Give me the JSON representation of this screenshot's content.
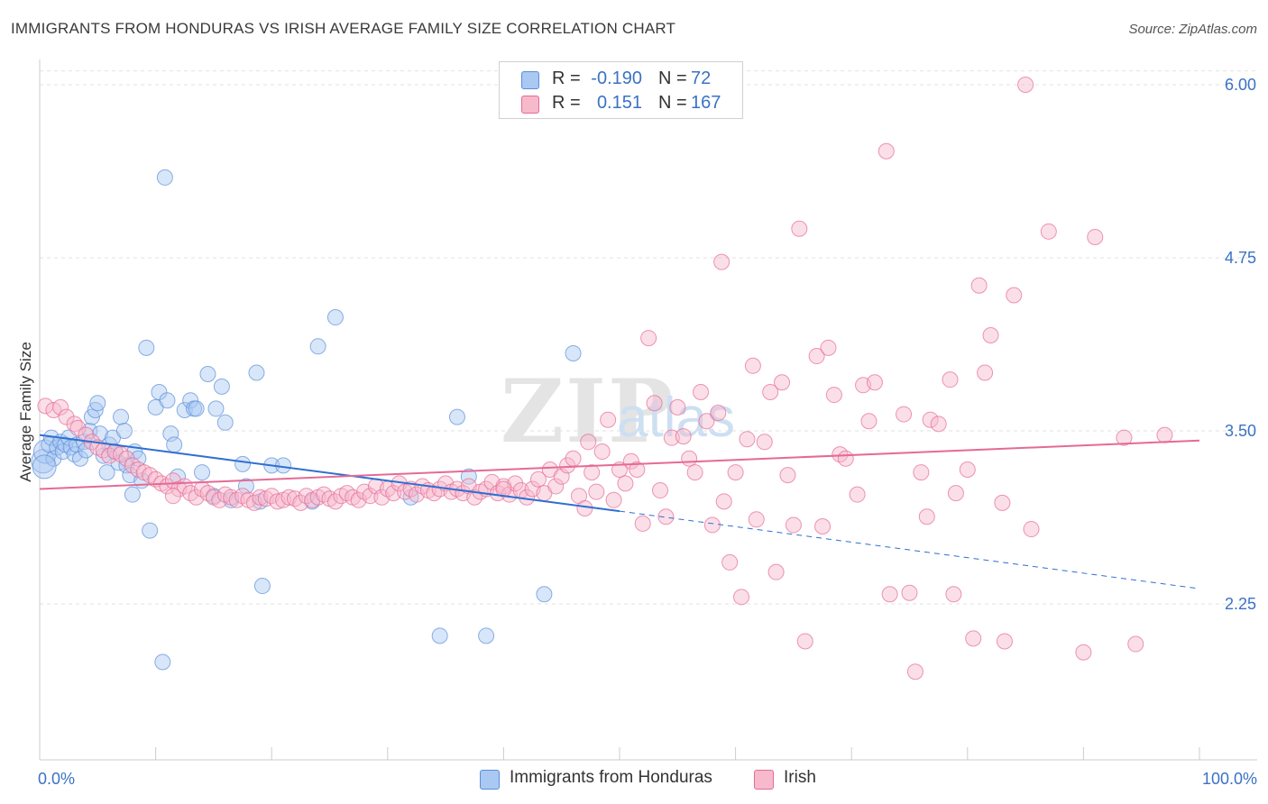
{
  "header": {
    "title": "IMMIGRANTS FROM HONDURAS VS IRISH AVERAGE FAMILY SIZE CORRELATION CHART",
    "source": "Source: ZipAtlas.com"
  },
  "watermark": {
    "zip": "ZIP",
    "atlas": "atlas"
  },
  "legend": {
    "rows": [
      {
        "r_label": "R =",
        "r_value": "-0.190",
        "n_label": "N =",
        "n_value": "72",
        "color": "#a9c8f2"
      },
      {
        "r_label": "R =",
        "r_value": "0.151",
        "n_label": "N =",
        "n_value": "167",
        "color": "#f7b9cc"
      }
    ]
  },
  "bottom_legend": {
    "items": [
      {
        "label": "Immigrants from Honduras",
        "color": "#a9c8f2"
      },
      {
        "label": "Irish",
        "color": "#f7b9cc"
      }
    ]
  },
  "chart_data": {
    "type": "scatter",
    "title": "IMMIGRANTS FROM HONDURAS VS IRISH AVERAGE FAMILY SIZE CORRELATION CHART",
    "xlabel": "",
    "ylabel": "Average Family Size",
    "xlim": [
      0,
      100
    ],
    "ylim": [
      1.2,
      6.2
    ],
    "x_tick_labels": [
      "0.0%",
      "100.0%"
    ],
    "y_ticks": [
      2.25,
      3.5,
      4.75,
      6.0
    ],
    "y_tick_labels": [
      "2.25",
      "3.50",
      "4.75",
      "6.00"
    ],
    "grid": true,
    "series": [
      {
        "name": "Immigrants from Honduras",
        "color": "#5b8fd8",
        "fill": "#a9c8f2",
        "trend": {
          "x0": 0,
          "y0": 3.47,
          "x1": 50,
          "y1": 2.92,
          "dash_to_x": 100,
          "dash_to_y": 2.36
        },
        "points": [
          [
            0.3,
            3.28
          ],
          [
            0.5,
            3.35
          ],
          [
            0.8,
            3.4
          ],
          [
            1.0,
            3.45
          ],
          [
            1.2,
            3.3
          ],
          [
            1.5,
            3.38
          ],
          [
            1.8,
            3.42
          ],
          [
            2.0,
            3.35
          ],
          [
            2.2,
            3.4
          ],
          [
            2.5,
            3.45
          ],
          [
            2.7,
            3.38
          ],
          [
            3.0,
            3.33
          ],
          [
            3.2,
            3.4
          ],
          [
            3.5,
            3.3
          ],
          [
            3.8,
            3.42
          ],
          [
            4.0,
            3.36
          ],
          [
            4.3,
            3.5
          ],
          [
            4.5,
            3.6
          ],
          [
            4.8,
            3.65
          ],
          [
            5.0,
            3.7
          ],
          [
            5.2,
            3.48
          ],
          [
            5.5,
            3.32
          ],
          [
            5.8,
            3.2
          ],
          [
            6.0,
            3.4
          ],
          [
            6.3,
            3.45
          ],
          [
            6.5,
            3.35
          ],
          [
            6.8,
            3.27
          ],
          [
            7.0,
            3.6
          ],
          [
            7.3,
            3.5
          ],
          [
            7.5,
            3.25
          ],
          [
            7.8,
            3.18
          ],
          [
            8.0,
            3.04
          ],
          [
            8.2,
            3.35
          ],
          [
            8.5,
            3.3
          ],
          [
            8.8,
            3.14
          ],
          [
            9.2,
            4.1
          ],
          [
            9.5,
            2.78
          ],
          [
            10.0,
            3.67
          ],
          [
            10.3,
            3.78
          ],
          [
            10.6,
            1.83
          ],
          [
            11.0,
            3.72
          ],
          [
            11.3,
            3.48
          ],
          [
            11.6,
            3.4
          ],
          [
            11.9,
            3.17
          ],
          [
            12.5,
            3.65
          ],
          [
            13.0,
            3.72
          ],
          [
            13.3,
            3.66
          ],
          [
            10.8,
            5.33
          ],
          [
            13.5,
            3.66
          ],
          [
            14.0,
            3.2
          ],
          [
            14.5,
            3.91
          ],
          [
            15.0,
            3.03
          ],
          [
            15.2,
            3.66
          ],
          [
            15.7,
            3.82
          ],
          [
            16.0,
            3.56
          ],
          [
            16.5,
            3.0
          ],
          [
            17.5,
            3.26
          ],
          [
            17.8,
            3.1
          ],
          [
            18.7,
            3.92
          ],
          [
            19.0,
            2.99
          ],
          [
            19.2,
            2.38
          ],
          [
            20.0,
            3.25
          ],
          [
            21.0,
            3.25
          ],
          [
            23.5,
            2.99
          ],
          [
            24.0,
            4.11
          ],
          [
            25.5,
            4.32
          ],
          [
            32.0,
            3.02
          ],
          [
            34.5,
            2.02
          ],
          [
            36.0,
            3.6
          ],
          [
            37.0,
            3.17
          ],
          [
            38.5,
            2.02
          ],
          [
            43.5,
            2.32
          ],
          [
            46.0,
            4.06
          ],
          [
            0.4,
            3.24
          ]
        ]
      },
      {
        "name": "Irish",
        "color": "#e56a96",
        "fill": "#f7b9cc",
        "trend": {
          "x0": 0,
          "y0": 3.08,
          "x1": 100,
          "y1": 3.43
        },
        "points": [
          [
            0.5,
            3.68
          ],
          [
            1.2,
            3.65
          ],
          [
            1.8,
            3.67
          ],
          [
            2.3,
            3.6
          ],
          [
            3.0,
            3.55
          ],
          [
            3.3,
            3.52
          ],
          [
            4.0,
            3.47
          ],
          [
            4.5,
            3.42
          ],
          [
            5.0,
            3.38
          ],
          [
            5.5,
            3.36
          ],
          [
            6.0,
            3.32
          ],
          [
            6.5,
            3.35
          ],
          [
            7.0,
            3.33
          ],
          [
            7.5,
            3.3
          ],
          [
            8.0,
            3.25
          ],
          [
            8.5,
            3.22
          ],
          [
            9.0,
            3.2
          ],
          [
            9.5,
            3.18
          ],
          [
            10.0,
            3.15
          ],
          [
            10.5,
            3.12
          ],
          [
            11.0,
            3.1
          ],
          [
            11.5,
            3.14
          ],
          [
            12.0,
            3.08
          ],
          [
            12.5,
            3.1
          ],
          [
            13.0,
            3.05
          ],
          [
            13.5,
            3.02
          ],
          [
            14.0,
            3.08
          ],
          [
            14.5,
            3.05
          ],
          [
            15.0,
            3.02
          ],
          [
            15.5,
            3.0
          ],
          [
            16.0,
            3.04
          ],
          [
            16.5,
            3.02
          ],
          [
            17.0,
            3.0
          ],
          [
            17.5,
            3.03
          ],
          [
            18.0,
            3.0
          ],
          [
            18.5,
            2.98
          ],
          [
            19.0,
            3.02
          ],
          [
            19.5,
            3.01
          ],
          [
            20.0,
            3.03
          ],
          [
            20.5,
            2.99
          ],
          [
            21.0,
            3.0
          ],
          [
            21.5,
            3.02
          ],
          [
            22.0,
            3.01
          ],
          [
            22.5,
            2.98
          ],
          [
            23.0,
            3.03
          ],
          [
            23.5,
            3.0
          ],
          [
            24.0,
            3.02
          ],
          [
            24.5,
            3.04
          ],
          [
            25.0,
            3.01
          ],
          [
            25.5,
            2.99
          ],
          [
            26.0,
            3.03
          ],
          [
            26.5,
            3.05
          ],
          [
            27.0,
            3.02
          ],
          [
            27.5,
            3.0
          ],
          [
            28.0,
            3.06
          ],
          [
            28.5,
            3.03
          ],
          [
            29.0,
            3.1
          ],
          [
            29.5,
            3.02
          ],
          [
            30.0,
            3.08
          ],
          [
            30.5,
            3.05
          ],
          [
            31.0,
            3.12
          ],
          [
            31.5,
            3.06
          ],
          [
            32.0,
            3.08
          ],
          [
            32.5,
            3.04
          ],
          [
            33.0,
            3.1
          ],
          [
            33.5,
            3.07
          ],
          [
            34.0,
            3.05
          ],
          [
            34.5,
            3.08
          ],
          [
            35.0,
            3.12
          ],
          [
            35.5,
            3.06
          ],
          [
            36.0,
            3.08
          ],
          [
            36.5,
            3.05
          ],
          [
            37.0,
            3.1
          ],
          [
            37.5,
            3.02
          ],
          [
            38.0,
            3.06
          ],
          [
            38.5,
            3.08
          ],
          [
            39.0,
            3.13
          ],
          [
            39.5,
            3.05
          ],
          [
            40.0,
            3.1
          ],
          [
            40.5,
            3.04
          ],
          [
            41.0,
            3.12
          ],
          [
            41.5,
            3.07
          ],
          [
            42.0,
            3.02
          ],
          [
            42.5,
            3.08
          ],
          [
            43.0,
            3.15
          ],
          [
            43.5,
            3.05
          ],
          [
            44.0,
            3.22
          ],
          [
            44.5,
            3.1
          ],
          [
            45.0,
            3.17
          ],
          [
            45.5,
            3.25
          ],
          [
            46.0,
            3.3
          ],
          [
            46.5,
            3.03
          ],
          [
            47.0,
            2.94
          ],
          [
            47.3,
            3.42
          ],
          [
            47.6,
            3.2
          ],
          [
            48.0,
            3.06
          ],
          [
            48.5,
            3.35
          ],
          [
            49.0,
            3.58
          ],
          [
            49.5,
            3.0
          ],
          [
            50.0,
            3.22
          ],
          [
            50.5,
            3.12
          ],
          [
            51.0,
            3.28
          ],
          [
            51.5,
            3.22
          ],
          [
            52.0,
            2.83
          ],
          [
            52.5,
            4.17
          ],
          [
            53.0,
            3.7
          ],
          [
            53.5,
            3.07
          ],
          [
            54.0,
            2.88
          ],
          [
            54.5,
            3.45
          ],
          [
            55.0,
            3.67
          ],
          [
            55.5,
            3.46
          ],
          [
            56.0,
            3.3
          ],
          [
            56.5,
            3.2
          ],
          [
            57.0,
            3.78
          ],
          [
            57.5,
            3.57
          ],
          [
            58.0,
            2.82
          ],
          [
            58.5,
            3.63
          ],
          [
            58.8,
            4.72
          ],
          [
            59.0,
            2.99
          ],
          [
            59.5,
            2.55
          ],
          [
            60.0,
            3.2
          ],
          [
            60.5,
            2.3
          ],
          [
            61.0,
            3.44
          ],
          [
            61.5,
            3.97
          ],
          [
            61.8,
            2.86
          ],
          [
            62.5,
            3.42
          ],
          [
            63.0,
            3.78
          ],
          [
            63.5,
            2.48
          ],
          [
            64.0,
            3.85
          ],
          [
            64.5,
            3.18
          ],
          [
            65.0,
            2.82
          ],
          [
            65.5,
            4.96
          ],
          [
            66.0,
            1.98
          ],
          [
            67.0,
            4.04
          ],
          [
            67.5,
            2.81
          ],
          [
            68.0,
            4.1
          ],
          [
            68.5,
            3.76
          ],
          [
            69.0,
            3.33
          ],
          [
            69.5,
            3.3
          ],
          [
            70.5,
            3.04
          ],
          [
            71.0,
            3.83
          ],
          [
            71.5,
            3.57
          ],
          [
            72.0,
            3.85
          ],
          [
            73.0,
            5.52
          ],
          [
            73.3,
            2.32
          ],
          [
            74.5,
            3.62
          ],
          [
            75.0,
            2.33
          ],
          [
            75.5,
            1.76
          ],
          [
            76.0,
            3.2
          ],
          [
            76.5,
            2.88
          ],
          [
            76.8,
            3.58
          ],
          [
            77.5,
            3.55
          ],
          [
            78.5,
            3.87
          ],
          [
            78.8,
            2.32
          ],
          [
            79.0,
            3.05
          ],
          [
            80.0,
            3.22
          ],
          [
            80.5,
            2.0
          ],
          [
            81.0,
            4.55
          ],
          [
            81.5,
            3.92
          ],
          [
            82.0,
            4.19
          ],
          [
            83.0,
            2.98
          ],
          [
            83.2,
            1.98
          ],
          [
            84.0,
            4.48
          ],
          [
            85.0,
            6.0
          ],
          [
            85.5,
            2.79
          ],
          [
            87.0,
            4.94
          ],
          [
            90.0,
            1.9
          ],
          [
            91.0,
            4.9
          ],
          [
            93.5,
            3.45
          ],
          [
            94.5,
            1.96
          ],
          [
            97.0,
            3.47
          ],
          [
            11.5,
            3.03
          ],
          [
            40.0,
            3.08
          ]
        ]
      }
    ]
  }
}
